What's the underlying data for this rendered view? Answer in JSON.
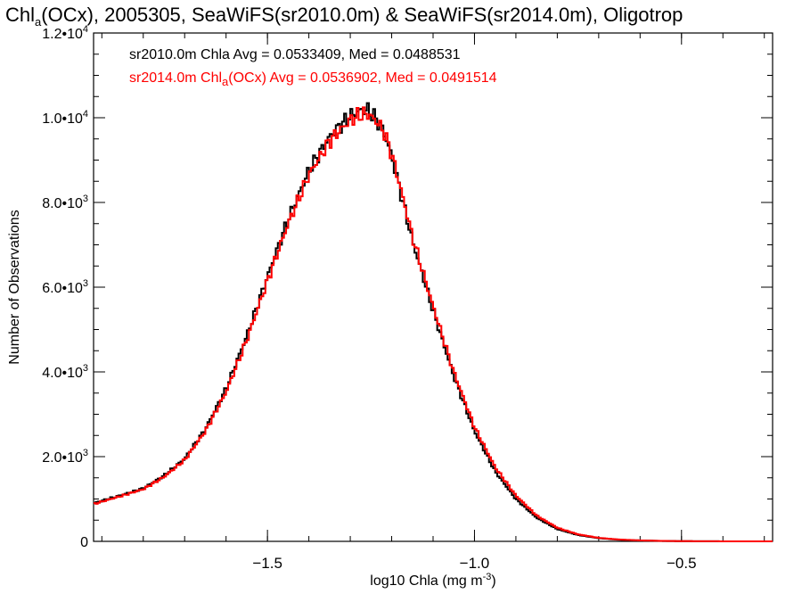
{
  "chart_data": {
    "type": "line",
    "title_parts": [
      "Chl",
      "a",
      "(OCx), 2005305, SeaWiFS(sr2010.0m) & SeaWiFS(sr2014.0m), Oligotrop"
    ],
    "xlabel_parts": [
      "log10 Chla (mg m",
      "-3",
      ")"
    ],
    "ylabel": "Number of Observations",
    "xlim": [
      -1.92,
      -0.28
    ],
    "ylim": [
      0,
      12000
    ],
    "x_ticks": [
      {
        "value": -1.5,
        "label": "−1.5"
      },
      {
        "value": -1.0,
        "label": "−1.0"
      },
      {
        "value": -0.5,
        "label": "−0.5"
      }
    ],
    "x_minor_step": 0.1,
    "y_ticks": [
      {
        "value": 0,
        "mantissa": "0",
        "exp": ""
      },
      {
        "value": 2000,
        "mantissa": "2.0•10",
        "exp": "3"
      },
      {
        "value": 4000,
        "mantissa": "4.0•10",
        "exp": "3"
      },
      {
        "value": 6000,
        "mantissa": "6.0•10",
        "exp": "3"
      },
      {
        "value": 8000,
        "mantissa": "8.0•10",
        "exp": "3"
      },
      {
        "value": 10000,
        "mantissa": "1.0•10",
        "exp": "4"
      },
      {
        "value": 12000,
        "mantissa": "1.2•10",
        "exp": "4"
      }
    ],
    "y_minor_step": 500,
    "bin_width": 0.005,
    "legend_placement": "top-left",
    "series": [
      {
        "name": "sr2010.0m",
        "legend_parts": [
          "sr2010.0m Chla Avg = 0.0533409, Med = 0.0488531"
        ],
        "color": "#000000",
        "x": [
          -1.92,
          -1.85,
          -1.8,
          -1.75,
          -1.7,
          -1.65,
          -1.6,
          -1.55,
          -1.5,
          -1.45,
          -1.4,
          -1.35,
          -1.3,
          -1.28,
          -1.26,
          -1.24,
          -1.22,
          -1.2,
          -1.18,
          -1.15,
          -1.1,
          -1.05,
          -1.0,
          -0.95,
          -0.9,
          -0.85,
          -0.8,
          -0.75,
          -0.7,
          -0.65,
          -0.6,
          -0.55,
          -0.5,
          -0.45,
          -0.4,
          -0.35,
          -0.28
        ],
        "y": [
          900,
          1100,
          1250,
          1550,
          1950,
          2650,
          3600,
          4850,
          6250,
          7600,
          8750,
          9550,
          10050,
          10150,
          10200,
          10000,
          9700,
          9100,
          8300,
          7100,
          5450,
          3900,
          2600,
          1650,
          1000,
          560,
          290,
          150,
          75,
          38,
          20,
          10,
          5,
          3,
          1,
          0,
          0
        ]
      },
      {
        "name": "sr2014.0m",
        "legend_parts": [
          "sr2014.0m Chl",
          "a",
          "(OCx) Avg = 0.0536902, Med = 0.0491514"
        ],
        "color": "#ff0000",
        "x": [
          -1.92,
          -1.85,
          -1.8,
          -1.75,
          -1.7,
          -1.65,
          -1.6,
          -1.55,
          -1.5,
          -1.45,
          -1.4,
          -1.35,
          -1.3,
          -1.28,
          -1.26,
          -1.24,
          -1.22,
          -1.2,
          -1.18,
          -1.15,
          -1.1,
          -1.05,
          -1.0,
          -0.95,
          -0.9,
          -0.85,
          -0.8,
          -0.75,
          -0.7,
          -0.65,
          -0.6,
          -0.55,
          -0.5,
          -0.45,
          -0.4,
          -0.35,
          -0.28
        ],
        "y": [
          880,
          1080,
          1230,
          1520,
          1920,
          2600,
          3520,
          4750,
          6150,
          7500,
          8650,
          9450,
          9950,
          10050,
          10100,
          9950,
          9700,
          9150,
          8400,
          7200,
          5550,
          4000,
          2700,
          1750,
          1080,
          610,
          320,
          165,
          82,
          42,
          22,
          11,
          5,
          3,
          1,
          0,
          0
        ]
      }
    ]
  }
}
